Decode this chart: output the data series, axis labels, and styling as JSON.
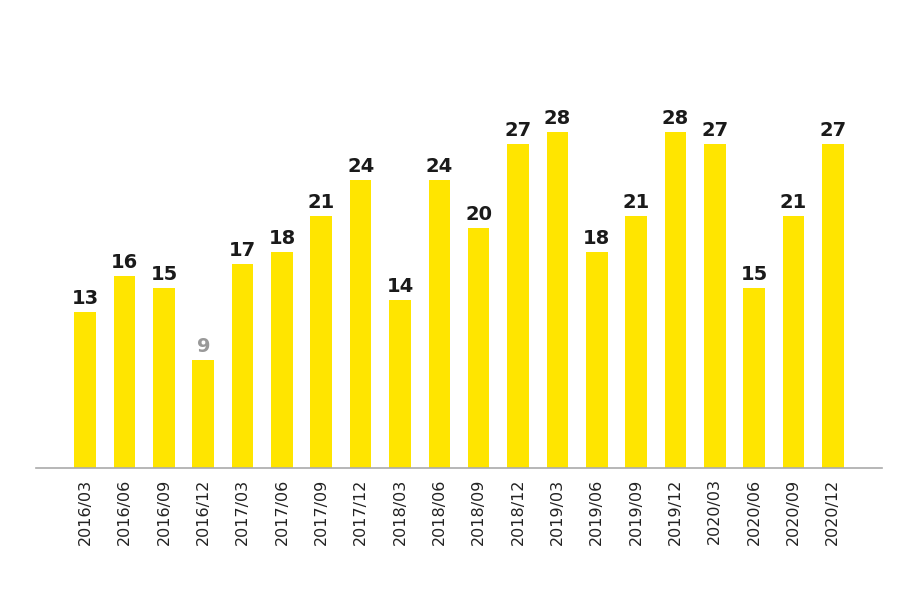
{
  "categories": [
    "2016/03",
    "2016/06",
    "2016/09",
    "2016/12",
    "2017/03",
    "2017/06",
    "2017/09",
    "2017/12",
    "2018/03",
    "2018/06",
    "2018/09",
    "2018/12",
    "2019/03",
    "2019/06",
    "2019/09",
    "2019/12",
    "2020/03",
    "2020/06",
    "2020/09",
    "2020/12"
  ],
  "values": [
    13,
    16,
    15,
    9,
    17,
    18,
    21,
    24,
    14,
    24,
    20,
    27,
    28,
    18,
    21,
    28,
    27,
    15,
    21,
    27
  ],
  "bar_color": "#FFE500",
  "label_color_normal": "#1a1a1a",
  "label_color_special": "#999999",
  "special_index": 3,
  "background_color": "#ffffff",
  "ylim": [
    0,
    33
  ],
  "bar_width": 0.55,
  "label_fontsize": 14,
  "tick_fontsize": 11.5
}
